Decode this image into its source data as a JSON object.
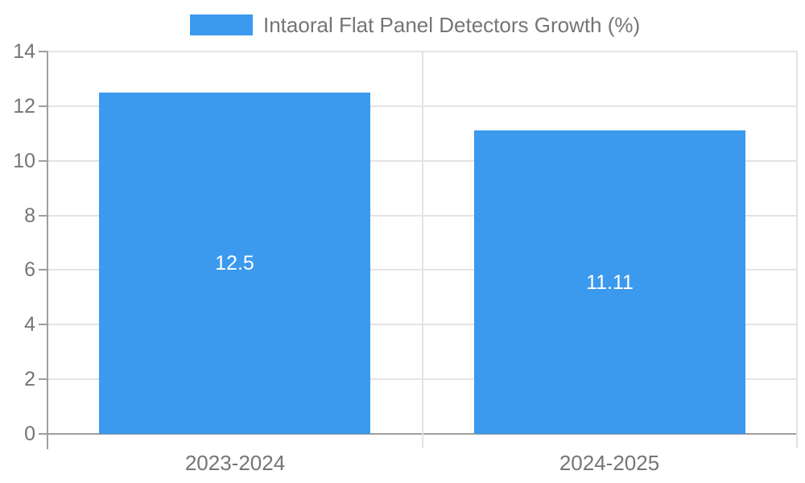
{
  "legend": {
    "label": "Intaoral Flat Panel Detectors Growth (%)"
  },
  "chart_data": {
    "type": "bar",
    "title": "Intaoral Flat Panel Detectors Growth (%)",
    "categories": [
      "2023-2024",
      "2024-2025"
    ],
    "values": [
      12.5,
      11.11
    ],
    "value_labels": [
      "12.5",
      "11.11"
    ],
    "series_name": "Intaoral Flat Panel Detectors Growth (%)",
    "xlabel": "",
    "ylabel": "",
    "ylim": [
      0,
      14
    ],
    "yticks": [
      0,
      2,
      4,
      6,
      8,
      10,
      12,
      14
    ],
    "grid": true,
    "legend_position": "top-center",
    "value_label_position": "inside-center",
    "colors": {
      "bar": "#3B99EE",
      "axis_text": "#757575",
      "value_text": "#ffffff",
      "gridline": "#e3e3e3",
      "axis_line": "#9e9e9e",
      "background": "#ffffff"
    }
  }
}
